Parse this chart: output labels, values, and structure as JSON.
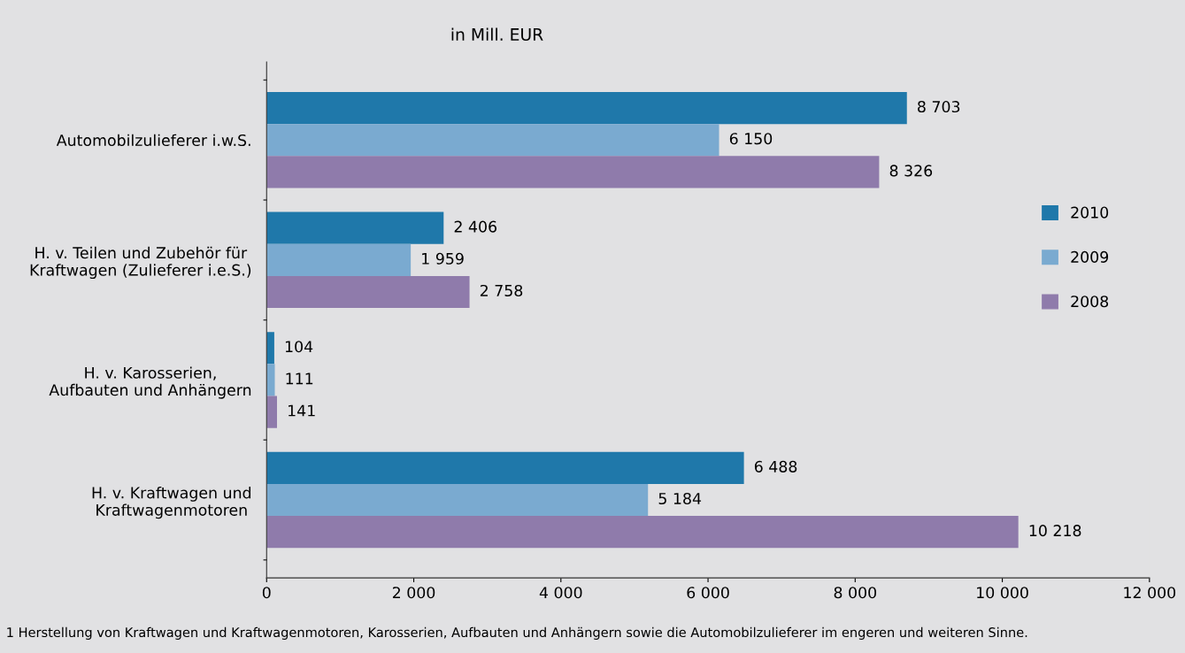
{
  "chart_data": {
    "type": "bar",
    "orientation": "horizontal",
    "title": "in Mill. EUR",
    "categories": [
      "Automobilzulieferer i.w.S.",
      "H. v. Teilen und Zubehör für\nKraftwagen (Zulieferer i.e.S.)",
      "H. v. Karosserien,\nAufbauten und Anhängern",
      "H. v. Kraftwagen und\nKraftwagenmotoren"
    ],
    "series": [
      {
        "name": "2010",
        "color": "#1f78aa",
        "values": [
          8703,
          2406,
          104,
          6488
        ],
        "value_labels": [
          "8 703",
          "2 406",
          "104",
          "6 488"
        ]
      },
      {
        "name": "2009",
        "color": "#7aaad0",
        "values": [
          6150,
          1959,
          111,
          5184
        ],
        "value_labels": [
          "6 150",
          "1 959",
          "111",
          "5 184"
        ]
      },
      {
        "name": "2008",
        "color": "#8f7bab",
        "values": [
          8326,
          2758,
          141,
          10218
        ],
        "value_labels": [
          "8 326",
          "2 758",
          "141",
          "10 218"
        ]
      }
    ],
    "xlim": [
      0,
      12000
    ],
    "xticks": [
      0,
      {
        "value": 2000,
        "label": "2 000"
      },
      {
        "value": 4000,
        "label": "4 000"
      },
      {
        "value": 6000,
        "label": "6 000"
      },
      {
        "value": 8000,
        "label": "8 000"
      },
      {
        "value": 10000,
        "label": "10 000"
      },
      {
        "value": 12000,
        "label": "12 000"
      }
    ],
    "legend": "right",
    "grid": false,
    "annotations": [
      "1 Herstellung von Kraftwagen und Kraftwagenmotoren, Karosserien, Aufbauten und Anhängern sowie die Automobilzulieferer im engeren und weiteren Sinne."
    ]
  }
}
